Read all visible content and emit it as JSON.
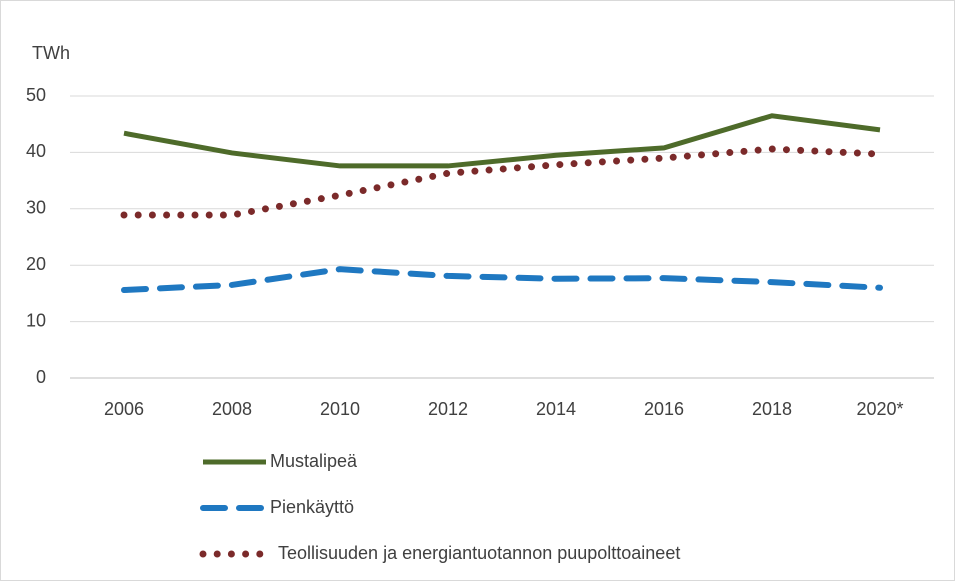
{
  "chart_data": {
    "type": "line",
    "y_label": "TWh",
    "categories": [
      "2006",
      "2008",
      "2010",
      "2012",
      "2014",
      "2016",
      "2018",
      "2020*"
    ],
    "series": [
      {
        "name": "Mustalipeä",
        "color": "#4e6b2a",
        "style": "solid",
        "values": [
          43.4,
          39.9,
          37.6,
          37.6,
          39.5,
          40.8,
          46.5,
          44.0
        ]
      },
      {
        "name": "Pienkäyttö",
        "color": "#1f78c1",
        "style": "dashed",
        "values": [
          15.6,
          16.5,
          19.3,
          18.1,
          17.6,
          17.7,
          17.0,
          16.0
        ]
      },
      {
        "name": "Teollisuuden ja energiantuotannon puupolttoaineet",
        "color": "#7b2a2a",
        "style": "dotted",
        "values": [
          28.9,
          28.9,
          32.4,
          36.3,
          37.8,
          39.0,
          40.6,
          39.7
        ]
      }
    ],
    "ylim": [
      0,
      50
    ],
    "yticks": [
      0,
      10,
      20,
      30,
      40,
      50
    ],
    "grid": true
  }
}
